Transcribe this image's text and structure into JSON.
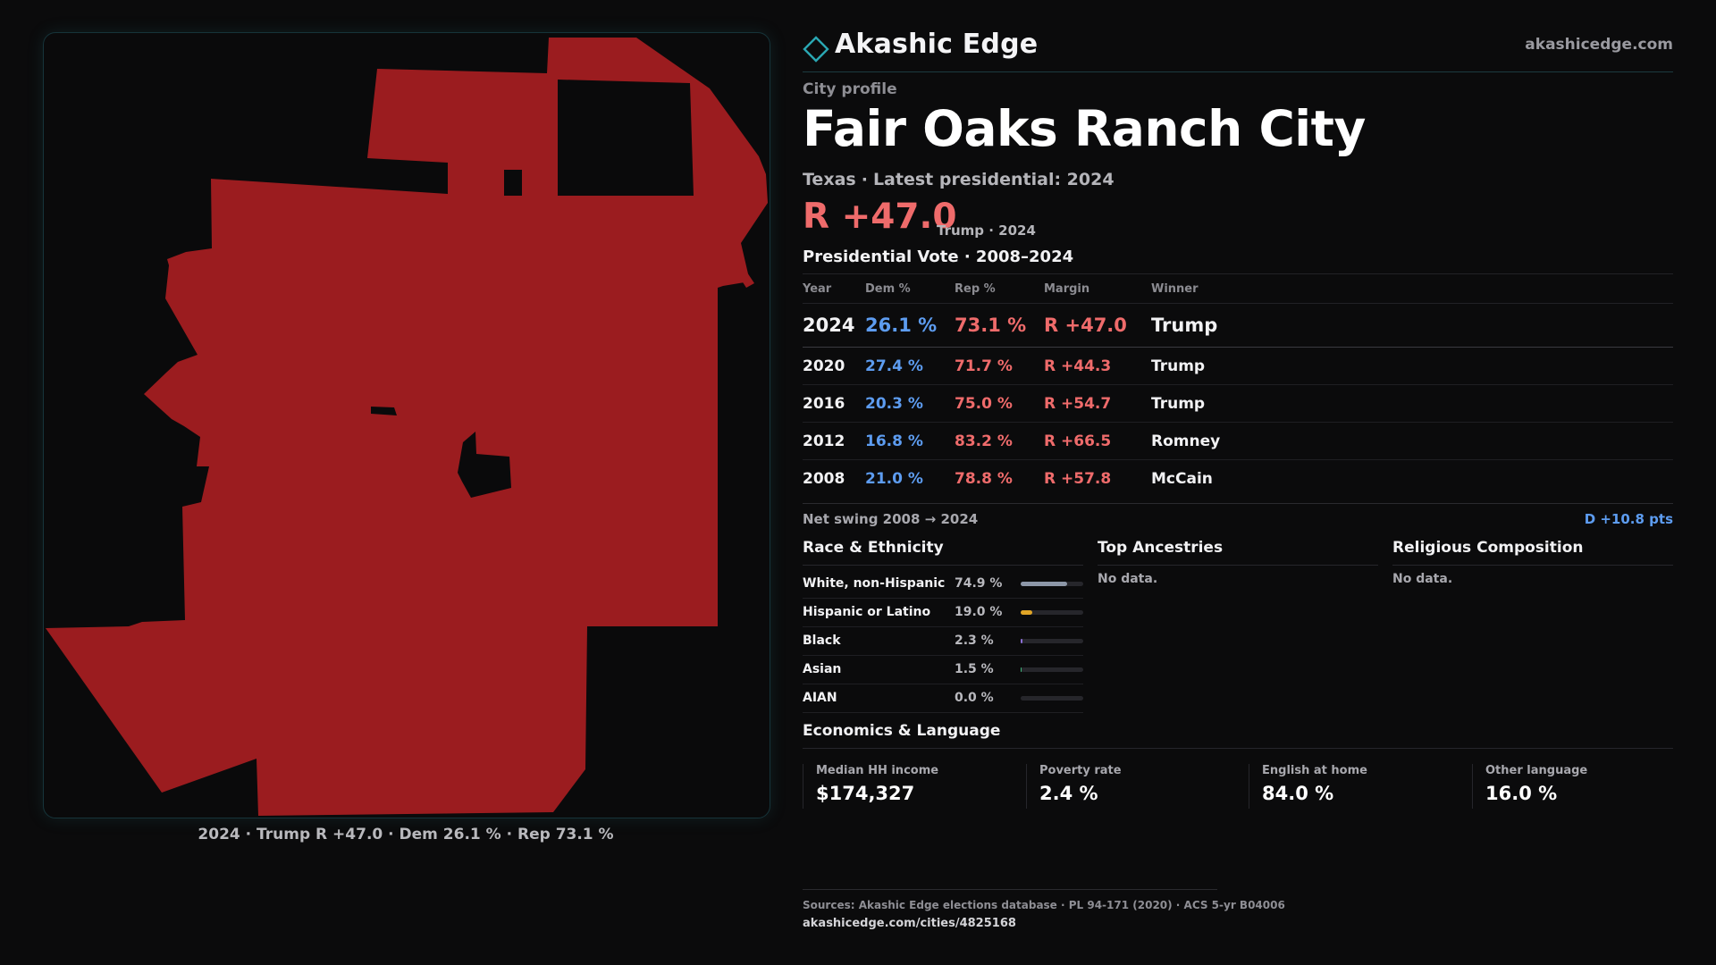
{
  "brand": {
    "name": "Akashic Edge",
    "site": "akashicedge.com"
  },
  "profile": {
    "kicker": "City profile",
    "city": "Fair Oaks Ranch City",
    "state": "Texas",
    "latest": "Latest presidential: 2024",
    "headline_margin": "R +47.0",
    "headline_note": "Trump · 2024"
  },
  "map": {
    "fill_color": "#9b1c1f",
    "caption": "2024 · Trump R +47.0 · Dem 26.1 % · Rep 73.1 %"
  },
  "vote": {
    "section_title": "Presidential Vote · 2008–2024",
    "columns": [
      "Year",
      "Dem %",
      "Rep %",
      "Margin",
      "Winner"
    ],
    "rows": [
      {
        "year": "2024",
        "dem": "26.1 %",
        "rep": "73.1 %",
        "margin": "R +47.0",
        "winner": "Trump"
      },
      {
        "year": "2020",
        "dem": "27.4 %",
        "rep": "71.7 %",
        "margin": "R +44.3",
        "winner": "Trump"
      },
      {
        "year": "2016",
        "dem": "20.3 %",
        "rep": "75.0 %",
        "margin": "R +54.7",
        "winner": "Trump"
      },
      {
        "year": "2012",
        "dem": "16.8 %",
        "rep": "83.2 %",
        "margin": "R +66.5",
        "winner": "Romney"
      },
      {
        "year": "2008",
        "dem": "21.0 %",
        "rep": "78.8 %",
        "margin": "R +57.8",
        "winner": "McCain"
      }
    ],
    "swing_label": "Net swing 2008 → 2024",
    "swing_value": "D +10.8 pts"
  },
  "race": {
    "title": "Race & Ethnicity",
    "rows": [
      {
        "label": "White, non-Hispanic",
        "value": "74.9 %",
        "pct": 74.9,
        "color": "#8d97a8"
      },
      {
        "label": "Hispanic or Latino",
        "value": "19.0 %",
        "pct": 19.0,
        "color": "#e0a526"
      },
      {
        "label": "Black",
        "value": "2.3 %",
        "pct": 2.3,
        "color": "#8b6fd6"
      },
      {
        "label": "Asian",
        "value": "1.5 %",
        "pct": 1.5,
        "color": "#3fb57a"
      },
      {
        "label": "AIAN",
        "value": "0.0 %",
        "pct": 0.0,
        "color": "#c2c2c7"
      }
    ]
  },
  "ancestries": {
    "title": "Top Ancestries",
    "empty": "No data."
  },
  "religion": {
    "title": "Religious Composition",
    "empty": "No data."
  },
  "economics": {
    "title": "Economics & Language",
    "cells": [
      {
        "label": "Median HH income",
        "value": "$174,327"
      },
      {
        "label": "Poverty rate",
        "value": "2.4 %"
      },
      {
        "label": "English at home",
        "value": "84.0 %"
      },
      {
        "label": "Other language",
        "value": "16.0 %"
      }
    ]
  },
  "sources": {
    "text": "Sources: Akashic Edge elections database · PL 94-171 (2020) · ACS 5-yr B04006",
    "url": "akashicedge.com/cities/4825168"
  }
}
